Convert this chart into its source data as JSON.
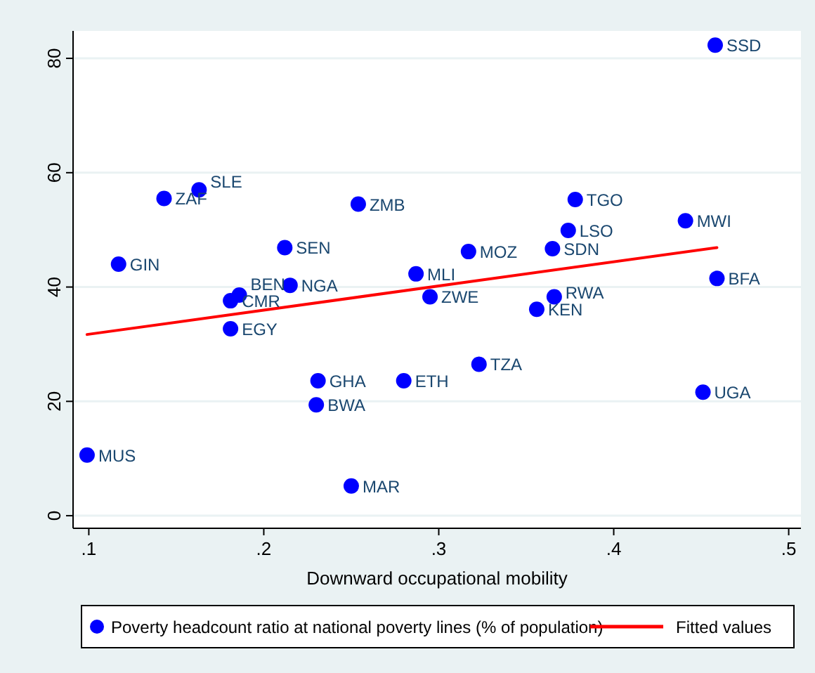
{
  "chart_data": {
    "type": "scatter",
    "xlabel": "Downward occupational mobility",
    "xlim": [
      0.091,
      0.507
    ],
    "ylim": [
      -2.2,
      84.8
    ],
    "xticks": [
      {
        "value": 0.1,
        "label": ".1"
      },
      {
        "value": 0.2,
        "label": ".2"
      },
      {
        "value": 0.3,
        "label": ".3"
      },
      {
        "value": 0.4,
        "label": ".4"
      },
      {
        "value": 0.5,
        "label": ".5"
      }
    ],
    "yticks": [
      0,
      20,
      40,
      60,
      80
    ],
    "grid": "y",
    "legend": "bottom",
    "series": [
      {
        "name": "Poverty headcount ratio at national poverty lines (% of population)",
        "marker": "circle",
        "color": "#0000ff",
        "x": [
          0.099,
          0.117,
          0.143,
          0.163,
          0.181,
          0.186,
          0.181,
          0.212,
          0.215,
          0.231,
          0.23,
          0.25,
          0.254,
          0.28,
          0.287,
          0.295,
          0.317,
          0.323,
          0.356,
          0.365,
          0.366,
          0.374,
          0.378,
          0.441,
          0.458,
          0.459,
          0.451
        ],
        "values": [
          10.6,
          44.0,
          55.5,
          57.0,
          37.6,
          38.6,
          32.7,
          46.9,
          40.3,
          23.6,
          19.4,
          5.2,
          54.5,
          23.6,
          42.3,
          38.3,
          46.2,
          26.5,
          36.1,
          46.7,
          38.3,
          49.9,
          55.3,
          51.6,
          82.3,
          41.5,
          21.6
        ]
      },
      {
        "name": "Fitted values",
        "type": "line",
        "marker": "none",
        "color": "#ff0000",
        "line_style": "solid",
        "x": [
          0.099,
          0.459
        ],
        "values": [
          31.7,
          46.9
        ]
      }
    ],
    "annotations": [
      {
        "text": "MUS",
        "x": 0.099,
        "y": 10.6
      },
      {
        "text": "GIN",
        "x": 0.117,
        "y": 44.0
      },
      {
        "text": "ZAF",
        "x": 0.143,
        "y": 55.5
      },
      {
        "text": "SLE",
        "x": 0.163,
        "y": 57.0
      },
      {
        "text": "CMR",
        "x": 0.181,
        "y": 37.6
      },
      {
        "text": "BEN",
        "x": 0.186,
        "y": 38.6
      },
      {
        "text": "EGY",
        "x": 0.181,
        "y": 32.7
      },
      {
        "text": "SEN",
        "x": 0.212,
        "y": 46.9
      },
      {
        "text": "NGA",
        "x": 0.215,
        "y": 40.3
      },
      {
        "text": "GHA",
        "x": 0.231,
        "y": 23.6
      },
      {
        "text": "BWA",
        "x": 0.23,
        "y": 19.4
      },
      {
        "text": "MAR",
        "x": 0.25,
        "y": 5.2
      },
      {
        "text": "ZMB",
        "x": 0.254,
        "y": 54.5
      },
      {
        "text": "ETH",
        "x": 0.28,
        "y": 23.6
      },
      {
        "text": "MLI",
        "x": 0.287,
        "y": 42.3
      },
      {
        "text": "ZWE",
        "x": 0.295,
        "y": 38.3
      },
      {
        "text": "MOZ",
        "x": 0.317,
        "y": 46.2
      },
      {
        "text": "TZA",
        "x": 0.323,
        "y": 26.5
      },
      {
        "text": "KEN",
        "x": 0.356,
        "y": 36.1
      },
      {
        "text": "SDN",
        "x": 0.365,
        "y": 46.7
      },
      {
        "text": "RWA",
        "x": 0.366,
        "y": 38.3
      },
      {
        "text": "LSO",
        "x": 0.374,
        "y": 49.9
      },
      {
        "text": "TGO",
        "x": 0.378,
        "y": 55.3
      },
      {
        "text": "MWI",
        "x": 0.441,
        "y": 51.6
      },
      {
        "text": "SSD",
        "x": 0.458,
        "y": 82.3
      },
      {
        "text": "BFA",
        "x": 0.459,
        "y": 41.5
      },
      {
        "text": "UGA",
        "x": 0.451,
        "y": 21.6
      }
    ]
  }
}
